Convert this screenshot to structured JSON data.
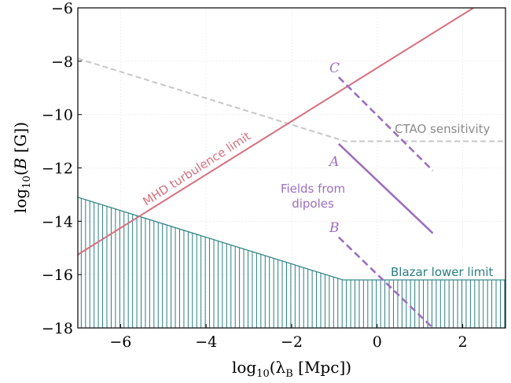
{
  "chart_data": {
    "type": "line",
    "xlabel": "log10(λB [Mpc])",
    "ylabel": "log10(B [G])",
    "xlim": [
      -7,
      3
    ],
    "ylim": [
      -18,
      -6
    ],
    "xticks": [
      -6,
      -4,
      -2,
      0,
      2
    ],
    "yticks": [
      -18,
      -16,
      -14,
      -12,
      -10,
      -8,
      -6
    ],
    "xtick_labels": [
      "−6",
      "−4",
      "−2",
      "0",
      "2"
    ],
    "ytick_labels": [
      "−18",
      "−16",
      "−14",
      "−12",
      "−10",
      "−8",
      "−6"
    ],
    "grid": true,
    "colors": {
      "mhd": "#d6707f",
      "ctao": "#c8c8c8",
      "dipole": "#9b6fbe",
      "blazar": "#2a7f80"
    },
    "mhd_turbulence_limit": {
      "x": [
        -7,
        2.25
      ],
      "y": [
        -15.25,
        -6
      ]
    },
    "ctao_sensitivity": {
      "x": [
        -7,
        -0.75,
        3
      ],
      "y": [
        -7.9,
        -11.0,
        -11.0
      ]
    },
    "blazar_lower_limit": {
      "x": [
        -7,
        -0.8,
        3
      ],
      "y": [
        -13.1,
        -16.2,
        -16.2
      ],
      "hatch": "vertical",
      "fill_to": -18
    },
    "dipole_lines": [
      {
        "label": "C",
        "x": [
          -0.9,
          1.3
        ],
        "y": [
          -8.6,
          -12.1
        ],
        "style": "dashed"
      },
      {
        "label": "A",
        "x": [
          -0.9,
          1.3
        ],
        "y": [
          -11.1,
          -14.45
        ],
        "style": "solid"
      },
      {
        "label": "B",
        "x": [
          -0.9,
          1.3
        ],
        "y": [
          -14.6,
          -18.0
        ],
        "style": "dashed"
      }
    ],
    "annotations": {
      "mhd": "MHD turbulence limit",
      "ctao": "CTAO sensitivity",
      "blazar": "Blazar lower limit",
      "fields_line1": "Fields from",
      "fields_line2": "dipoles",
      "label_a": "A",
      "label_b": "B",
      "label_c": "C"
    }
  }
}
